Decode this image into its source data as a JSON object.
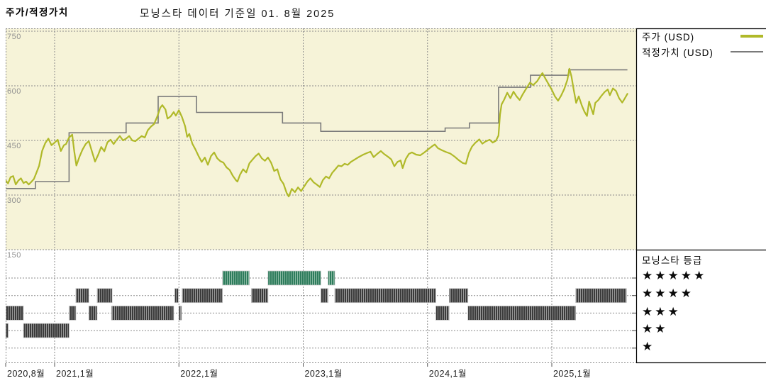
{
  "header": {
    "title": "주가/적정가치",
    "subtitle": "모닝스타 데이터 기준일 01. 8월 2025"
  },
  "legend": {
    "price_label": "주가 (USD)",
    "fair_label": "적정가치 (USD)"
  },
  "rating_legend": {
    "title": "모닝스타 등급",
    "stars": [
      "★★★★★",
      "★★★★",
      "★★★",
      "★★",
      "★"
    ]
  },
  "colors": {
    "price_line": "#b0b929",
    "fair_value_line": "#7a7a7a",
    "price_panel_bg": "#f6f3d8",
    "rating_dark_base": "#3b3b3b",
    "rating_dark_stripe": "#979797",
    "rating_green_base": "#2e7c5c",
    "rating_green_stripe": "#8ab9a3",
    "grid": "#8a8a8a",
    "axis": "#000000",
    "y_label": "#8f8f8f",
    "x_label": "#1c1c1c"
  },
  "chart_data": {
    "type": "line",
    "title": "주가/적정가치",
    "subtitle": "모닝스타 데이터 기준일 01. 8월 2025",
    "grid": true,
    "legend_position": "top-right",
    "x_axis": {
      "unit": "months_since_2020_08",
      "range_months": [
        0,
        61.2
      ],
      "labels": [
        {
          "text": "2020,8월",
          "month": 0
        },
        {
          "text": "2021,1월",
          "month": 5
        },
        {
          "text": "2022,1월",
          "month": 17
        },
        {
          "text": "2023,1월",
          "month": 29
        },
        {
          "text": "2024,1월",
          "month": 41
        },
        {
          "text": "2025,1월",
          "month": 53
        }
      ],
      "gridline_months": [
        5,
        17,
        29,
        41,
        53
      ],
      "tick_months": [
        0,
        5,
        17,
        29,
        41,
        53
      ]
    },
    "y_axis": {
      "ticks": [
        750,
        600,
        450,
        300,
        150
      ],
      "range": [
        150,
        758
      ]
    },
    "series": [
      {
        "name": "주가 (USD)",
        "type": "line",
        "color": "#b0b929",
        "points": [
          [
            0,
            357
          ],
          [
            0.25,
            341
          ],
          [
            0.5,
            332
          ],
          [
            0.75,
            349
          ],
          [
            1,
            352
          ],
          [
            1.25,
            329
          ],
          [
            1.5,
            340
          ],
          [
            1.75,
            346
          ],
          [
            2,
            333
          ],
          [
            2.25,
            337
          ],
          [
            2.5,
            329
          ],
          [
            2.75,
            336
          ],
          [
            3,
            344
          ],
          [
            3.2,
            358
          ],
          [
            3.5,
            380
          ],
          [
            3.8,
            422
          ],
          [
            4.1,
            443
          ],
          [
            4.4,
            455
          ],
          [
            4.7,
            437
          ],
          [
            5,
            444
          ],
          [
            5.3,
            452
          ],
          [
            5.6,
            421
          ],
          [
            5.9,
            437
          ],
          [
            6.1,
            440
          ],
          [
            6.4,
            458
          ],
          [
            6.7,
            466
          ],
          [
            6.9,
            420
          ],
          [
            7.1,
            381
          ],
          [
            7.4,
            405
          ],
          [
            7.7,
            425
          ],
          [
            8,
            440
          ],
          [
            8.3,
            448
          ],
          [
            8.6,
            420
          ],
          [
            8.9,
            392
          ],
          [
            9.2,
            410
          ],
          [
            9.5,
            432
          ],
          [
            9.8,
            420
          ],
          [
            10.1,
            445
          ],
          [
            10.4,
            452
          ],
          [
            10.7,
            440
          ],
          [
            11,
            452
          ],
          [
            11.3,
            462
          ],
          [
            11.6,
            450
          ],
          [
            11.9,
            455
          ],
          [
            12.2,
            462
          ],
          [
            12.5,
            450
          ],
          [
            12.8,
            448
          ],
          [
            13.1,
            455
          ],
          [
            13.4,
            462
          ],
          [
            13.7,
            458
          ],
          [
            14,
            478
          ],
          [
            14.3,
            488
          ],
          [
            14.6,
            495
          ],
          [
            14.9,
            515
          ],
          [
            15.2,
            540
          ],
          [
            15.4,
            547
          ],
          [
            15.7,
            535
          ],
          [
            15.9,
            510
          ],
          [
            16.2,
            516
          ],
          [
            16.5,
            528
          ],
          [
            16.7,
            518
          ],
          [
            17,
            533
          ],
          [
            17.3,
            514
          ],
          [
            17.6,
            489
          ],
          [
            17.8,
            460
          ],
          [
            18,
            468
          ],
          [
            18.3,
            441
          ],
          [
            18.6,
            425
          ],
          [
            18.9,
            407
          ],
          [
            19.2,
            391
          ],
          [
            19.5,
            403
          ],
          [
            19.8,
            383
          ],
          [
            20.1,
            407
          ],
          [
            20.4,
            417
          ],
          [
            20.7,
            401
          ],
          [
            21,
            393
          ],
          [
            21.3,
            389
          ],
          [
            21.6,
            376
          ],
          [
            21.9,
            369
          ],
          [
            22.2,
            353
          ],
          [
            22.5,
            341
          ],
          [
            22.65,
            337
          ],
          [
            22.9,
            356
          ],
          [
            23.2,
            371
          ],
          [
            23.5,
            362
          ],
          [
            23.8,
            387
          ],
          [
            24.1,
            397
          ],
          [
            24.4,
            407
          ],
          [
            24.7,
            414
          ],
          [
            25,
            401
          ],
          [
            25.3,
            394
          ],
          [
            25.6,
            403
          ],
          [
            25.9,
            389
          ],
          [
            26.2,
            366
          ],
          [
            26.5,
            371
          ],
          [
            26.8,
            343
          ],
          [
            27.1,
            331
          ],
          [
            27.4,
            306
          ],
          [
            27.6,
            296
          ],
          [
            27.9,
            317
          ],
          [
            28.2,
            308
          ],
          [
            28.5,
            321
          ],
          [
            28.8,
            311
          ],
          [
            29.1,
            324
          ],
          [
            29.4,
            337
          ],
          [
            29.7,
            346
          ],
          [
            30,
            335
          ],
          [
            30.3,
            329
          ],
          [
            30.6,
            322
          ],
          [
            30.9,
            341
          ],
          [
            31.2,
            351
          ],
          [
            31.5,
            346
          ],
          [
            31.8,
            361
          ],
          [
            32.1,
            371
          ],
          [
            32.4,
            381
          ],
          [
            32.7,
            379
          ],
          [
            33,
            386
          ],
          [
            33.3,
            383
          ],
          [
            33.6,
            391
          ],
          [
            34,
            398
          ],
          [
            34.4,
            405
          ],
          [
            34.8,
            411
          ],
          [
            35.2,
            416
          ],
          [
            35.5,
            419
          ],
          [
            35.8,
            404
          ],
          [
            36.1,
            412
          ],
          [
            36.5,
            421
          ],
          [
            36.8,
            413
          ],
          [
            37.2,
            405
          ],
          [
            37.5,
            398
          ],
          [
            37.8,
            379
          ],
          [
            38.1,
            391
          ],
          [
            38.4,
            395
          ],
          [
            38.6,
            374
          ],
          [
            38.9,
            399
          ],
          [
            39.2,
            413
          ],
          [
            39.5,
            417
          ],
          [
            39.9,
            411
          ],
          [
            40.3,
            409
          ],
          [
            40.7,
            417
          ],
          [
            41,
            424
          ],
          [
            41.4,
            433
          ],
          [
            41.7,
            439
          ],
          [
            42,
            429
          ],
          [
            42.4,
            423
          ],
          [
            42.8,
            418
          ],
          [
            43.2,
            414
          ],
          [
            43.6,
            406
          ],
          [
            44,
            396
          ],
          [
            44.4,
            388
          ],
          [
            44.7,
            386
          ],
          [
            45,
            416
          ],
          [
            45.3,
            433
          ],
          [
            45.6,
            443
          ],
          [
            46,
            453
          ],
          [
            46.3,
            441
          ],
          [
            46.6,
            447
          ],
          [
            47,
            452
          ],
          [
            47.3,
            444
          ],
          [
            47.6,
            449
          ],
          [
            47.85,
            463
          ],
          [
            48,
            521
          ],
          [
            48.15,
            549
          ],
          [
            48.4,
            562
          ],
          [
            48.7,
            581
          ],
          [
            49,
            566
          ],
          [
            49.3,
            584
          ],
          [
            49.6,
            571
          ],
          [
            49.9,
            561
          ],
          [
            50.2,
            577
          ],
          [
            50.5,
            591
          ],
          [
            50.9,
            609
          ],
          [
            51.2,
            602
          ],
          [
            51.6,
            613
          ],
          [
            51.9,
            627
          ],
          [
            52.1,
            635
          ],
          [
            52.4,
            619
          ],
          [
            52.7,
            604
          ],
          [
            53,
            589
          ],
          [
            53.3,
            571
          ],
          [
            53.6,
            559
          ],
          [
            53.9,
            573
          ],
          [
            54.2,
            591
          ],
          [
            54.5,
            616
          ],
          [
            54.7,
            647
          ],
          [
            54.9,
            626
          ],
          [
            55.1,
            591
          ],
          [
            55.35,
            553
          ],
          [
            55.6,
            571
          ],
          [
            55.9,
            546
          ],
          [
            56.15,
            529
          ],
          [
            56.4,
            517
          ],
          [
            56.6,
            557
          ],
          [
            56.8,
            539
          ],
          [
            57,
            522
          ],
          [
            57.2,
            553
          ],
          [
            57.5,
            561
          ],
          [
            57.8,
            573
          ],
          [
            58.1,
            583
          ],
          [
            58.4,
            590
          ],
          [
            58.6,
            574
          ],
          [
            58.9,
            593
          ],
          [
            59.2,
            586
          ],
          [
            59.5,
            566
          ],
          [
            59.8,
            554
          ],
          [
            60,
            563
          ],
          [
            60.3,
            578
          ]
        ]
      },
      {
        "name": "적정가치 (USD)",
        "type": "step",
        "color": "#7a7a7a",
        "segments": [
          [
            0.3,
            3.15,
            318
          ],
          [
            3.15,
            6.4,
            337
          ],
          [
            6.4,
            11.9,
            471
          ],
          [
            11.9,
            15,
            498
          ],
          [
            15,
            18.7,
            571
          ],
          [
            18.7,
            27,
            527
          ],
          [
            27,
            30.7,
            498
          ],
          [
            30.7,
            42.7,
            475
          ],
          [
            42.7,
            45.05,
            484
          ],
          [
            45.05,
            47.86,
            498
          ],
          [
            47.86,
            50.94,
            596
          ],
          [
            50.94,
            54.64,
            629
          ],
          [
            54.64,
            60.3,
            644
          ]
        ]
      }
    ],
    "ratings": {
      "panel_title": "모닝스타 등급",
      "levels": [
        {
          "stars": 5,
          "color": "#2e7c5c",
          "intervals": [
            [
              21.2,
              23.8
            ],
            [
              25.6,
              30.7
            ],
            [
              31.4,
              32.05
            ]
          ]
        },
        {
          "stars": 4,
          "color": "#3b3b3b",
          "intervals": [
            [
              7.05,
              8.3
            ],
            [
              9.1,
              10.55
            ],
            [
              16.6,
              16.95
            ],
            [
              17.3,
              21.2
            ],
            [
              24.0,
              25.6
            ],
            [
              30.7,
              31.4
            ],
            [
              32.05,
              41.8
            ],
            [
              43.1,
              44.9
            ],
            [
              55.3,
              60.2
            ]
          ]
        },
        {
          "stars": 3,
          "color": "#3b3b3b",
          "intervals": [
            [
              0.3,
              2.0
            ],
            [
              6.4,
              7.05
            ],
            [
              8.3,
              9.1
            ],
            [
              10.5,
              16.5
            ],
            [
              17.0,
              17.25
            ],
            [
              41.8,
              43.1
            ],
            [
              44.9,
              55.3
            ]
          ]
        },
        {
          "stars": 2,
          "color": "#3b3b3b",
          "intervals": [
            [
              0.0,
              0.25
            ],
            [
              2.0,
              6.4
            ]
          ]
        },
        {
          "stars": 1,
          "color": "#3b3b3b",
          "intervals": []
        }
      ]
    }
  }
}
